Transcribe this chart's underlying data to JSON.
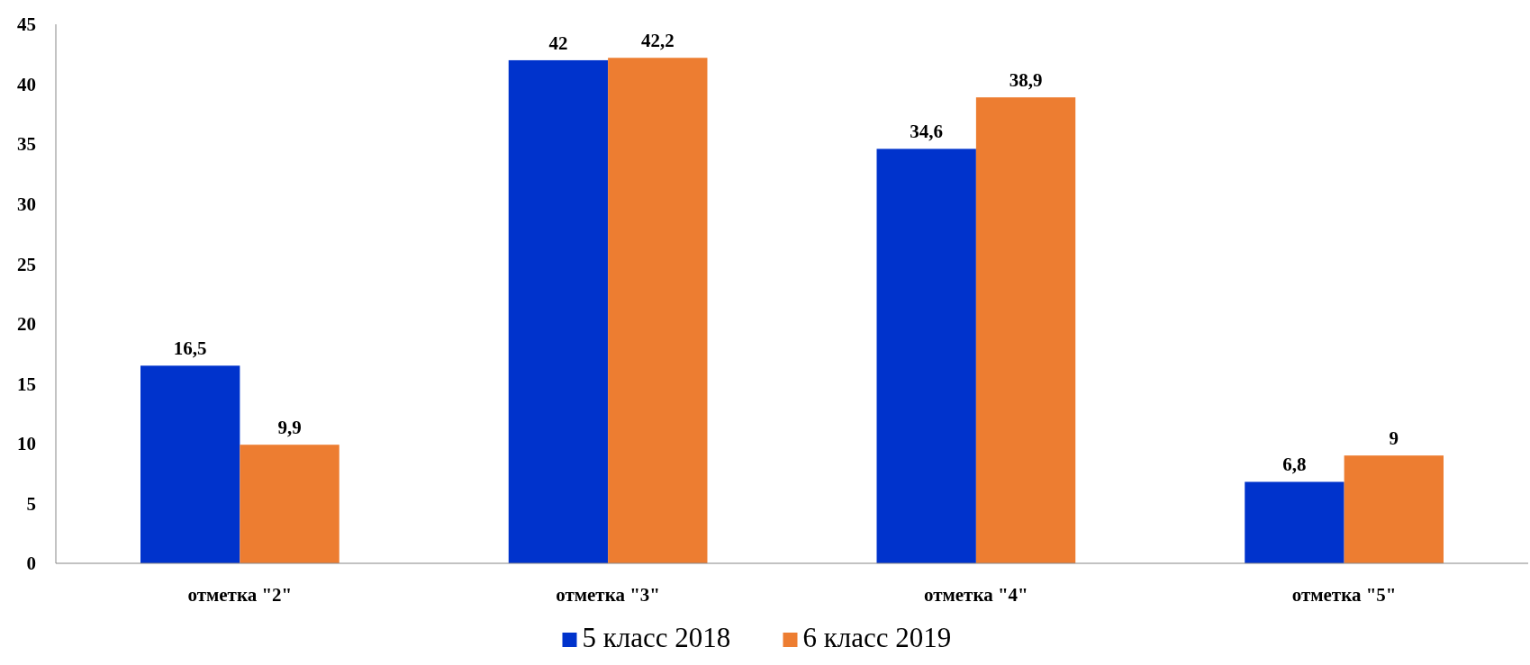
{
  "chart_data": {
    "type": "bar",
    "categories": [
      "отметка \"2\"",
      "отметка \"3\"",
      "отметка \"4\"",
      "отметка \"5\""
    ],
    "series": [
      {
        "name": "5 класс 2018",
        "color": "#0033cc",
        "values": [
          16.5,
          42,
          34.6,
          6.8
        ],
        "value_labels": [
          "16,5",
          "42",
          "34,6",
          "6,8"
        ]
      },
      {
        "name": "6 класс 2019",
        "color": "#ed7d31",
        "values": [
          9.9,
          42.2,
          38.9,
          9
        ],
        "value_labels": [
          "9,9",
          "42,2",
          "38,9",
          "9"
        ]
      }
    ],
    "ylim": [
      0,
      45
    ],
    "yticks": [
      0,
      5,
      10,
      15,
      20,
      25,
      30,
      35,
      40,
      45
    ],
    "grid": false,
    "legend": "bottom"
  }
}
